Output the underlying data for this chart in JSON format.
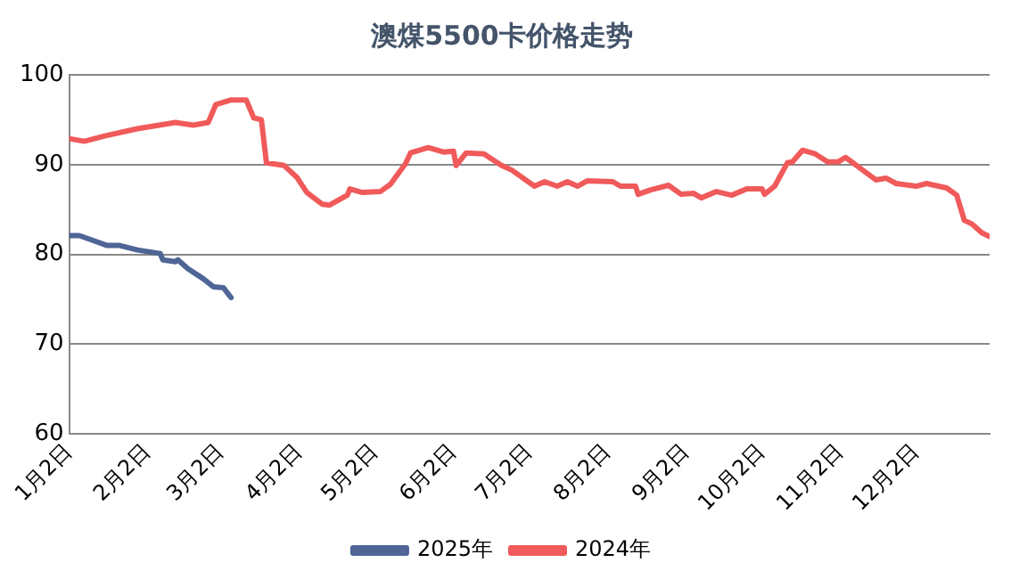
{
  "chart_data": {
    "type": "line",
    "title": "澳煤5500卡价格走势",
    "xlim": [
      "--01-02",
      "--12-31"
    ],
    "ylim": [
      60,
      100
    ],
    "yticks": [
      60,
      70,
      80,
      90,
      100
    ],
    "xticks": [
      {
        "value": "--01-02",
        "label": "1月2日"
      },
      {
        "value": "--02-02",
        "label": "2月2日"
      },
      {
        "value": "--03-02",
        "label": "3月2日"
      },
      {
        "value": "--04-02",
        "label": "4月2日"
      },
      {
        "value": "--05-02",
        "label": "5月2日"
      },
      {
        "value": "--06-02",
        "label": "6月2日"
      },
      {
        "value": "--07-02",
        "label": "7月2日"
      },
      {
        "value": "--08-02",
        "label": "8月2日"
      },
      {
        "value": "--09-02",
        "label": "9月2日"
      },
      {
        "value": "--10-02",
        "label": "10月2日"
      },
      {
        "value": "--11-02",
        "label": "11月2日"
      },
      {
        "value": "--12-02",
        "label": "12月2日"
      }
    ],
    "grid": "y",
    "legend": "bottom",
    "marker": "none",
    "line_style": "solid",
    "series": [
      {
        "name": "2025年",
        "color": "#4e6596",
        "x": [
          "--01-02",
          "--01-06",
          "--01-11",
          "--01-17",
          "--01-22",
          "--01-29",
          "--02-07",
          "--02-08",
          "--02-13",
          "--02-14",
          "--02-18",
          "--02-24",
          "--02-28",
          "--03-03",
          "--03-06"
        ],
        "values": [
          82.1,
          82.1,
          81.6,
          81.0,
          81.0,
          80.5,
          80.1,
          79.4,
          79.2,
          79.4,
          78.4,
          77.3,
          76.4,
          76.3,
          75.2
        ]
      },
      {
        "name": "2024年",
        "color": "#f05a5a",
        "x": [
          "--01-02",
          "--01-08",
          "--01-16",
          "--01-29",
          "--02-13",
          "--02-20",
          "--02-26",
          "--02-29",
          "--03-06",
          "--03-12",
          "--03-15",
          "--03-18",
          "--03-20",
          "--03-27",
          "--04-01",
          "--04-05",
          "--04-11",
          "--04-14",
          "--04-21",
          "--04-22",
          "--04-27",
          "--05-04",
          "--05-08",
          "--05-14",
          "--05-16",
          "--05-23",
          "--05-29",
          "--06-02",
          "--06-03",
          "--06-07",
          "--06-14",
          "--06-21",
          "--06-25",
          "--07-04",
          "--07-08",
          "--07-13",
          "--07-17",
          "--07-21",
          "--07-25",
          "--08-04",
          "--08-07",
          "--08-13",
          "--08-14",
          "--08-19",
          "--08-26",
          "--08-31",
          "--09-05",
          "--09-08",
          "--09-14",
          "--09-20",
          "--09-26",
          "--10-02",
          "--10-03",
          "--10-07",
          "--10-12",
          "--10-14",
          "--10-18",
          "--10-23",
          "--10-28",
          "--11-01",
          "--11-04",
          "--11-07",
          "--11-16",
          "--11-20",
          "--11-24",
          "--12-02",
          "--12-06",
          "--12-14",
          "--12-18",
          "--12-21",
          "--12-24",
          "--12-28",
          "--12-31"
        ],
        "values": [
          92.9,
          92.6,
          93.2,
          94.0,
          94.7,
          94.4,
          94.7,
          96.7,
          97.2,
          97.2,
          95.2,
          95.0,
          90.2,
          89.9,
          88.6,
          86.9,
          85.6,
          85.5,
          86.6,
          87.3,
          86.9,
          87.0,
          87.8,
          90.1,
          91.3,
          91.9,
          91.4,
          91.5,
          89.9,
          91.3,
          91.2,
          89.9,
          89.4,
          87.6,
          88.1,
          87.6,
          88.1,
          87.6,
          88.2,
          88.1,
          87.6,
          87.6,
          86.7,
          87.2,
          87.7,
          86.7,
          86.8,
          86.3,
          87.0,
          86.6,
          87.3,
          87.3,
          86.7,
          87.6,
          90.2,
          90.3,
          91.6,
          91.2,
          90.3,
          90.3,
          90.8,
          90.2,
          88.3,
          88.5,
          87.9,
          87.6,
          87.9,
          87.4,
          86.6,
          83.8,
          83.4,
          82.4,
          82.0
        ]
      }
    ]
  }
}
